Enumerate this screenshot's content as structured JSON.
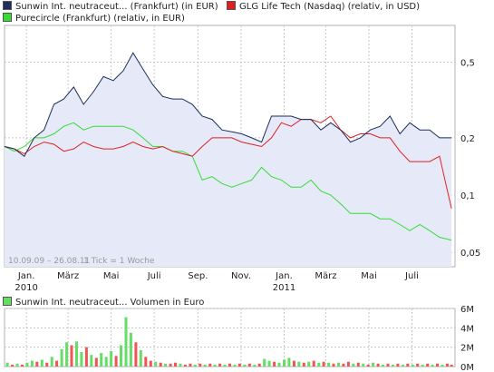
{
  "colors": {
    "series_sunwin": "#1f2e5a",
    "series_glg": "#e02020",
    "series_purecircle": "#33dd33",
    "area_fill": "#e6e9f7",
    "grid": "#c8c8c8",
    "volume_green": "#66dd66",
    "volume_red": "#ee5555"
  },
  "chart_data": [
    {
      "type": "line",
      "legend": [
        "Sunwin Int. neutraceut... (Frankfurt) (in EUR)",
        "GLG Life Tech (Nasdaq) (relativ, in USD)",
        "Purecircle (Frankfurt) (relativ, in EUR)"
      ],
      "date_range_label": "10.09.09 – 26.08.11",
      "tick_label": "1 Tick = 1 Woche",
      "y_scale": "log",
      "ylim": [
        0.042,
        0.78
      ],
      "y_ticks": [
        0.05,
        0.1,
        0.2,
        0.5
      ],
      "y_tick_labels": [
        "0,05",
        "0,1",
        "0,2",
        "0,5"
      ],
      "x_start": "2009-12-01",
      "x_end": "2011-08-31",
      "x_ticks": [
        {
          "date": "2010-01-01",
          "label": "Jan."
        },
        {
          "date": "2010-03-01",
          "label": "März"
        },
        {
          "date": "2010-05-01",
          "label": "Mai"
        },
        {
          "date": "2010-07-01",
          "label": "Juli"
        },
        {
          "date": "2010-09-01",
          "label": "Sep."
        },
        {
          "date": "2010-11-01",
          "label": "Nov."
        },
        {
          "date": "2011-01-01",
          "label": "Jan."
        },
        {
          "date": "2011-03-01",
          "label": "März"
        },
        {
          "date": "2011-05-01",
          "label": "Mai"
        },
        {
          "date": "2011-07-01",
          "label": "Juli"
        }
      ],
      "year_labels": [
        {
          "date": "2010-01-01",
          "label": "2010"
        },
        {
          "date": "2011-01-01",
          "label": "2011"
        }
      ],
      "series": [
        {
          "name": "Sunwin Int. neutraceut... (Frankfurt) (in EUR)",
          "x": [
            "2009-12-01",
            "2009-12-15",
            "2009-12-29",
            "2010-01-12",
            "2010-01-26",
            "2010-02-09",
            "2010-02-23",
            "2010-03-09",
            "2010-03-23",
            "2010-04-06",
            "2010-04-20",
            "2010-05-04",
            "2010-05-18",
            "2010-06-01",
            "2010-06-15",
            "2010-06-29",
            "2010-07-13",
            "2010-07-27",
            "2010-08-10",
            "2010-08-24",
            "2010-09-07",
            "2010-09-21",
            "2010-10-05",
            "2010-10-19",
            "2010-11-02",
            "2010-11-16",
            "2010-11-30",
            "2010-12-14",
            "2010-12-28",
            "2011-01-11",
            "2011-01-25",
            "2011-02-08",
            "2011-02-22",
            "2011-03-08",
            "2011-03-22",
            "2011-04-05",
            "2011-04-19",
            "2011-05-03",
            "2011-05-17",
            "2011-05-31",
            "2011-06-14",
            "2011-06-28",
            "2011-07-12",
            "2011-07-26",
            "2011-08-09",
            "2011-08-26"
          ],
          "values": [
            0.18,
            0.175,
            0.16,
            0.2,
            0.22,
            0.3,
            0.32,
            0.37,
            0.3,
            0.35,
            0.42,
            0.4,
            0.45,
            0.56,
            0.46,
            0.38,
            0.33,
            0.32,
            0.32,
            0.3,
            0.26,
            0.25,
            0.22,
            0.215,
            0.21,
            0.2,
            0.19,
            0.26,
            0.26,
            0.26,
            0.25,
            0.25,
            0.22,
            0.24,
            0.22,
            0.19,
            0.2,
            0.22,
            0.23,
            0.26,
            0.21,
            0.24,
            0.22,
            0.22,
            0.2,
            0.2
          ]
        },
        {
          "name": "GLG Life Tech (Nasdaq) (relativ, in USD)",
          "x": [
            "2009-12-01",
            "2009-12-15",
            "2009-12-29",
            "2010-01-12",
            "2010-01-26",
            "2010-02-09",
            "2010-02-23",
            "2010-03-09",
            "2010-03-23",
            "2010-04-06",
            "2010-04-20",
            "2010-05-04",
            "2010-05-18",
            "2010-06-01",
            "2010-06-15",
            "2010-06-29",
            "2010-07-13",
            "2010-07-27",
            "2010-08-10",
            "2010-08-24",
            "2010-09-07",
            "2010-09-21",
            "2010-10-05",
            "2010-10-19",
            "2010-11-02",
            "2010-11-16",
            "2010-11-30",
            "2010-12-14",
            "2010-12-28",
            "2011-01-11",
            "2011-01-25",
            "2011-02-08",
            "2011-02-22",
            "2011-03-08",
            "2011-03-22",
            "2011-04-05",
            "2011-04-19",
            "2011-05-03",
            "2011-05-17",
            "2011-05-31",
            "2011-06-14",
            "2011-06-28",
            "2011-07-12",
            "2011-07-26",
            "2011-08-09",
            "2011-08-26"
          ],
          "values": [
            0.18,
            0.175,
            0.165,
            0.18,
            0.19,
            0.185,
            0.17,
            0.175,
            0.19,
            0.18,
            0.175,
            0.175,
            0.18,
            0.19,
            0.18,
            0.175,
            0.18,
            0.17,
            0.165,
            0.16,
            0.18,
            0.2,
            0.2,
            0.2,
            0.19,
            0.185,
            0.18,
            0.2,
            0.24,
            0.23,
            0.25,
            0.25,
            0.24,
            0.26,
            0.22,
            0.2,
            0.21,
            0.21,
            0.2,
            0.2,
            0.17,
            0.15,
            0.15,
            0.15,
            0.16,
            0.085
          ]
        },
        {
          "name": "Purecircle (Frankfurt) (relativ, in EUR)",
          "x": [
            "2009-12-01",
            "2009-12-15",
            "2009-12-29",
            "2010-01-12",
            "2010-01-26",
            "2010-02-09",
            "2010-02-23",
            "2010-03-09",
            "2010-03-23",
            "2010-04-06",
            "2010-04-20",
            "2010-05-04",
            "2010-05-18",
            "2010-06-01",
            "2010-06-15",
            "2010-06-29",
            "2010-07-13",
            "2010-07-27",
            "2010-08-10",
            "2010-08-24",
            "2010-09-07",
            "2010-09-21",
            "2010-10-05",
            "2010-10-19",
            "2010-11-02",
            "2010-11-16",
            "2010-11-30",
            "2010-12-14",
            "2010-12-28",
            "2011-01-11",
            "2011-01-25",
            "2011-02-08",
            "2011-02-22",
            "2011-03-08",
            "2011-03-22",
            "2011-04-05",
            "2011-04-19",
            "2011-05-03",
            "2011-05-17",
            "2011-05-31",
            "2011-06-14",
            "2011-06-28",
            "2011-07-12",
            "2011-07-26",
            "2011-08-09",
            "2011-08-26"
          ],
          "values": [
            0.18,
            0.17,
            0.18,
            0.2,
            0.2,
            0.21,
            0.23,
            0.24,
            0.22,
            0.23,
            0.23,
            0.23,
            0.23,
            0.22,
            0.2,
            0.18,
            0.18,
            0.17,
            0.17,
            0.16,
            0.12,
            0.125,
            0.115,
            0.11,
            0.115,
            0.12,
            0.14,
            0.125,
            0.12,
            0.11,
            0.11,
            0.12,
            0.105,
            0.1,
            0.09,
            0.08,
            0.08,
            0.08,
            0.075,
            0.075,
            0.07,
            0.065,
            0.07,
            0.065,
            0.06,
            0.058
          ]
        }
      ]
    },
    {
      "type": "bar",
      "legend": "Sunwin Int. neutraceut... Volumen in Euro",
      "ylim": [
        0,
        6000000
      ],
      "y_ticks": [
        0,
        2000000,
        4000000,
        6000000
      ],
      "y_tick_labels": [
        "0M",
        "2M",
        "4M",
        "6M"
      ],
      "x_start": "2009-12-01",
      "x_end": "2011-08-31",
      "bars": [
        {
          "date": "2009-12-05",
          "value": 400000,
          "dir": "up"
        },
        {
          "date": "2009-12-12",
          "value": 200000,
          "dir": "down"
        },
        {
          "date": "2009-12-19",
          "value": 300000,
          "dir": "up"
        },
        {
          "date": "2009-12-26",
          "value": 200000,
          "dir": "down"
        },
        {
          "date": "2010-01-02",
          "value": 400000,
          "dir": "up"
        },
        {
          "date": "2010-01-09",
          "value": 600000,
          "dir": "up"
        },
        {
          "date": "2010-01-16",
          "value": 500000,
          "dir": "down"
        },
        {
          "date": "2010-01-23",
          "value": 700000,
          "dir": "up"
        },
        {
          "date": "2010-01-30",
          "value": 400000,
          "dir": "down"
        },
        {
          "date": "2010-02-06",
          "value": 1000000,
          "dir": "up"
        },
        {
          "date": "2010-02-13",
          "value": 600000,
          "dir": "down"
        },
        {
          "date": "2010-02-20",
          "value": 1800000,
          "dir": "up"
        },
        {
          "date": "2010-02-27",
          "value": 2500000,
          "dir": "up"
        },
        {
          "date": "2010-03-06",
          "value": 2200000,
          "dir": "down"
        },
        {
          "date": "2010-03-13",
          "value": 2600000,
          "dir": "up"
        },
        {
          "date": "2010-03-20",
          "value": 1500000,
          "dir": "up"
        },
        {
          "date": "2010-03-27",
          "value": 2000000,
          "dir": "down"
        },
        {
          "date": "2010-04-03",
          "value": 1200000,
          "dir": "up"
        },
        {
          "date": "2010-04-10",
          "value": 900000,
          "dir": "down"
        },
        {
          "date": "2010-04-17",
          "value": 1400000,
          "dir": "up"
        },
        {
          "date": "2010-04-24",
          "value": 1000000,
          "dir": "up"
        },
        {
          "date": "2010-05-01",
          "value": 1600000,
          "dir": "up"
        },
        {
          "date": "2010-05-08",
          "value": 1100000,
          "dir": "down"
        },
        {
          "date": "2010-05-15",
          "value": 2200000,
          "dir": "up"
        },
        {
          "date": "2010-05-22",
          "value": 5100000,
          "dir": "up"
        },
        {
          "date": "2010-05-29",
          "value": 3500000,
          "dir": "up"
        },
        {
          "date": "2010-06-05",
          "value": 2500000,
          "dir": "down"
        },
        {
          "date": "2010-06-12",
          "value": 1700000,
          "dir": "up"
        },
        {
          "date": "2010-06-19",
          "value": 1000000,
          "dir": "down"
        },
        {
          "date": "2010-06-26",
          "value": 600000,
          "dir": "down"
        },
        {
          "date": "2010-07-03",
          "value": 500000,
          "dir": "up"
        },
        {
          "date": "2010-07-10",
          "value": 400000,
          "dir": "down"
        },
        {
          "date": "2010-07-17",
          "value": 300000,
          "dir": "up"
        },
        {
          "date": "2010-07-24",
          "value": 300000,
          "dir": "down"
        },
        {
          "date": "2010-07-31",
          "value": 400000,
          "dir": "down"
        },
        {
          "date": "2010-08-07",
          "value": 300000,
          "dir": "up"
        },
        {
          "date": "2010-08-14",
          "value": 200000,
          "dir": "down"
        },
        {
          "date": "2010-08-21",
          "value": 300000,
          "dir": "down"
        },
        {
          "date": "2010-08-28",
          "value": 200000,
          "dir": "up"
        },
        {
          "date": "2010-09-04",
          "value": 300000,
          "dir": "down"
        },
        {
          "date": "2010-09-11",
          "value": 200000,
          "dir": "up"
        },
        {
          "date": "2010-09-18",
          "value": 300000,
          "dir": "down"
        },
        {
          "date": "2010-09-25",
          "value": 200000,
          "dir": "up"
        },
        {
          "date": "2010-10-02",
          "value": 300000,
          "dir": "down"
        },
        {
          "date": "2010-10-09",
          "value": 200000,
          "dir": "up"
        },
        {
          "date": "2010-10-16",
          "value": 300000,
          "dir": "down"
        },
        {
          "date": "2010-10-23",
          "value": 200000,
          "dir": "up"
        },
        {
          "date": "2010-10-30",
          "value": 300000,
          "dir": "down"
        },
        {
          "date": "2010-11-06",
          "value": 200000,
          "dir": "up"
        },
        {
          "date": "2010-11-13",
          "value": 300000,
          "dir": "down"
        },
        {
          "date": "2010-11-20",
          "value": 200000,
          "dir": "up"
        },
        {
          "date": "2010-11-27",
          "value": 300000,
          "dir": "down"
        },
        {
          "date": "2010-12-04",
          "value": 800000,
          "dir": "up"
        },
        {
          "date": "2010-12-11",
          "value": 600000,
          "dir": "up"
        },
        {
          "date": "2010-12-18",
          "value": 500000,
          "dir": "down"
        },
        {
          "date": "2010-12-25",
          "value": 400000,
          "dir": "up"
        },
        {
          "date": "2011-01-01",
          "value": 700000,
          "dir": "up"
        },
        {
          "date": "2011-01-08",
          "value": 900000,
          "dir": "up"
        },
        {
          "date": "2011-01-15",
          "value": 600000,
          "dir": "down"
        },
        {
          "date": "2011-01-22",
          "value": 500000,
          "dir": "up"
        },
        {
          "date": "2011-01-29",
          "value": 400000,
          "dir": "down"
        },
        {
          "date": "2011-02-05",
          "value": 500000,
          "dir": "up"
        },
        {
          "date": "2011-02-12",
          "value": 600000,
          "dir": "down"
        },
        {
          "date": "2011-02-19",
          "value": 400000,
          "dir": "up"
        },
        {
          "date": "2011-02-26",
          "value": 500000,
          "dir": "down"
        },
        {
          "date": "2011-03-05",
          "value": 400000,
          "dir": "up"
        },
        {
          "date": "2011-03-12",
          "value": 300000,
          "dir": "down"
        },
        {
          "date": "2011-03-19",
          "value": 400000,
          "dir": "up"
        },
        {
          "date": "2011-03-26",
          "value": 300000,
          "dir": "down"
        },
        {
          "date": "2011-04-02",
          "value": 500000,
          "dir": "down"
        },
        {
          "date": "2011-04-09",
          "value": 300000,
          "dir": "up"
        },
        {
          "date": "2011-04-16",
          "value": 400000,
          "dir": "down"
        },
        {
          "date": "2011-04-23",
          "value": 300000,
          "dir": "up"
        },
        {
          "date": "2011-04-30",
          "value": 200000,
          "dir": "down"
        },
        {
          "date": "2011-05-07",
          "value": 400000,
          "dir": "up"
        },
        {
          "date": "2011-05-14",
          "value": 300000,
          "dir": "down"
        },
        {
          "date": "2011-05-21",
          "value": 200000,
          "dir": "up"
        },
        {
          "date": "2011-05-28",
          "value": 300000,
          "dir": "down"
        },
        {
          "date": "2011-06-04",
          "value": 200000,
          "dir": "up"
        },
        {
          "date": "2011-06-11",
          "value": 300000,
          "dir": "down"
        },
        {
          "date": "2011-06-18",
          "value": 200000,
          "dir": "up"
        },
        {
          "date": "2011-06-25",
          "value": 300000,
          "dir": "down"
        },
        {
          "date": "2011-07-02",
          "value": 200000,
          "dir": "up"
        },
        {
          "date": "2011-07-09",
          "value": 300000,
          "dir": "down"
        },
        {
          "date": "2011-07-16",
          "value": 200000,
          "dir": "up"
        },
        {
          "date": "2011-07-23",
          "value": 300000,
          "dir": "down"
        },
        {
          "date": "2011-07-30",
          "value": 200000,
          "dir": "up"
        },
        {
          "date": "2011-08-06",
          "value": 300000,
          "dir": "down"
        },
        {
          "date": "2011-08-13",
          "value": 200000,
          "dir": "up"
        },
        {
          "date": "2011-08-20",
          "value": 300000,
          "dir": "down"
        },
        {
          "date": "2011-08-26",
          "value": 200000,
          "dir": "down"
        }
      ]
    }
  ]
}
